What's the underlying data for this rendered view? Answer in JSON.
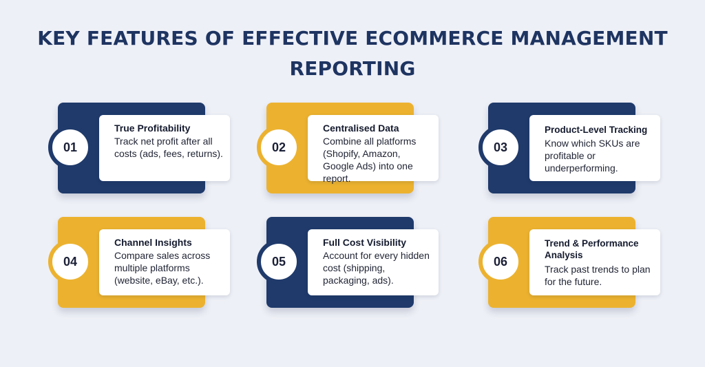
{
  "title": {
    "line1": "KEY FEATURES OF EFFECTIVE ECOMMERCE MANAGEMENT",
    "line2": "REPORTING"
  },
  "features": [
    {
      "number": "01",
      "title": "True Profitability",
      "desc": "Track net profit after all costs (ads, fees, returns)."
    },
    {
      "number": "02",
      "title": "Centralised Data",
      "desc": "Combine all platforms (Shopify, Amazon, Google Ads) into one report."
    },
    {
      "number": "03",
      "title": "Product-Level Tracking",
      "desc": "Know which SKUs are profitable or underperforming."
    },
    {
      "number": "04",
      "title": "Channel Insights",
      "desc": "Compare sales across multiple platforms (website, eBay, etc.)."
    },
    {
      "number": "05",
      "title": "Full Cost Visibility",
      "desc": "Account for every hidden cost (shipping, packaging, ads)."
    },
    {
      "number": "06",
      "title": "Trend & Performance Analysis",
      "desc": "Track past trends to plan for the future."
    }
  ],
  "colors": {
    "navy": "#1f3a6b",
    "gold": "#ecb22f",
    "background": "#eef0f7",
    "title": "#1e3461"
  }
}
